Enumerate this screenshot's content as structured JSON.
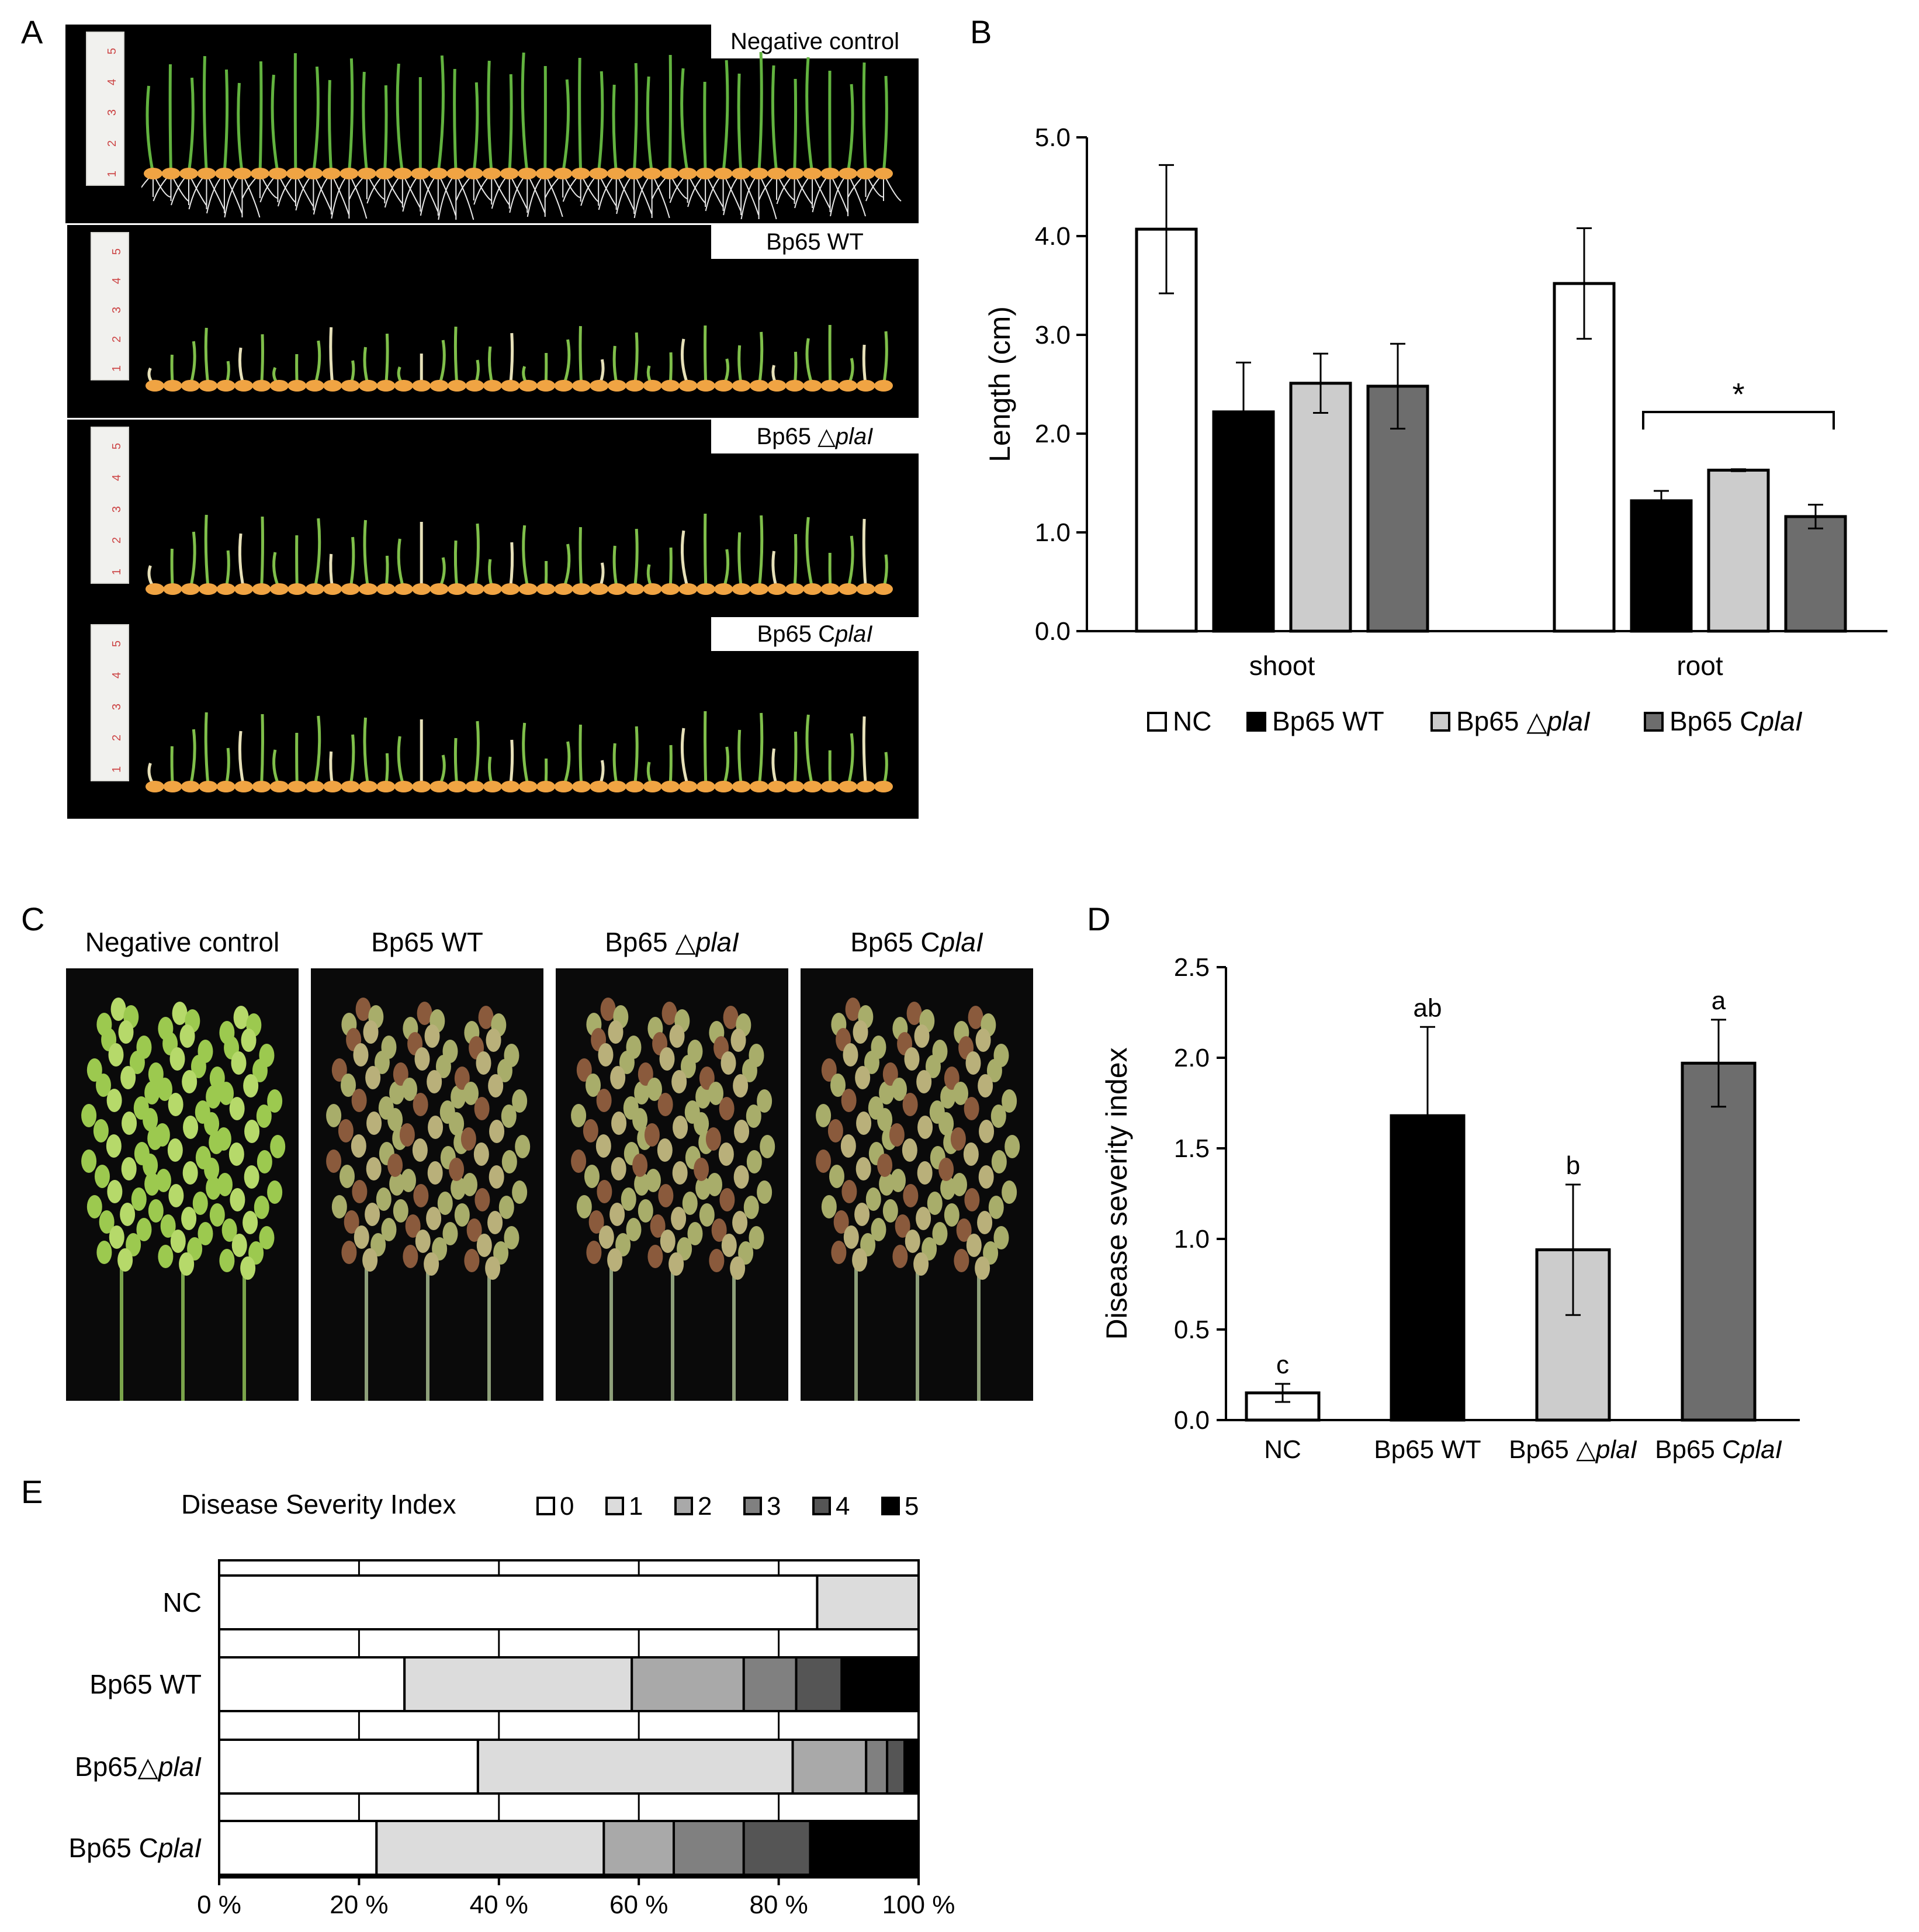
{
  "panels": {
    "A": {
      "letter": "A",
      "rows": [
        {
          "label_plain": "Negative control",
          "label_italic": "",
          "treatment": "NC"
        },
        {
          "label_plain": "Bp65 WT",
          "label_italic": "",
          "treatment": "WT"
        },
        {
          "label_plain": "Bp65 △",
          "label_italic": "plaI",
          "treatment": "delta"
        },
        {
          "label_plain": "Bp65 C",
          "label_italic": "plaI",
          "treatment": "comp"
        }
      ],
      "ruler_numbers": [
        "5",
        "4",
        "3",
        "2",
        "1"
      ]
    },
    "B": {
      "letter": "B"
    },
    "C": {
      "letter": "C",
      "photos": [
        {
          "label_plain": "Negative control",
          "label_italic": "",
          "tone": "green"
        },
        {
          "label_plain": "Bp65 WT",
          "label_italic": "",
          "tone": "diseased"
        },
        {
          "label_plain": "Bp65 △",
          "label_italic": "plaI",
          "tone": "diseased"
        },
        {
          "label_plain": "Bp65 C",
          "label_italic": "plaI",
          "tone": "diseased"
        }
      ]
    },
    "D": {
      "letter": "D"
    },
    "E": {
      "letter": "E"
    }
  },
  "colors": {
    "NC": "#ffffff",
    "WT": "#000000",
    "delta": "#cccccc",
    "comp": "#6d6d6d",
    "dsi_0": "#ffffff",
    "dsi_1": "#dcdcdc",
    "dsi_2": "#a9a9a9",
    "dsi_3": "#808080",
    "dsi_4": "#555555",
    "dsi_5": "#000000"
  },
  "chart_data": [
    {
      "panel": "B",
      "type": "bar",
      "ylabel": "Length (cm)",
      "ylim": [
        0,
        5
      ],
      "yticks": [
        "0.0",
        "1.0",
        "2.0",
        "3.0",
        "4.0",
        "5.0"
      ],
      "categories": [
        "shoot",
        "root"
      ],
      "series": [
        {
          "name": "NC",
          "name_plain": "NC",
          "name_italic": "",
          "values": [
            4.07,
            3.52
          ],
          "errors": [
            0.65,
            0.56
          ]
        },
        {
          "name": "Bp65 WT",
          "name_plain": "Bp65 WT",
          "name_italic": "",
          "values": [
            2.22,
            1.32
          ],
          "errors": [
            0.5,
            0.1
          ]
        },
        {
          "name": "Bp65 △plaI",
          "name_plain": "Bp65 △",
          "name_italic": "plaI",
          "values": [
            2.51,
            1.63
          ],
          "errors": [
            0.3,
            0.01
          ]
        },
        {
          "name": "Bp65 CplaI",
          "name_plain": "Bp65 C",
          "name_italic": "plaI",
          "values": [
            2.48,
            1.16
          ],
          "errors": [
            0.43,
            0.12
          ]
        }
      ],
      "annotation": "*",
      "legend": "bottom"
    },
    {
      "panel": "D",
      "type": "bar",
      "ylabel": "Disease severity index",
      "ylim": [
        0,
        2.5
      ],
      "yticks": [
        "0.0",
        "0.5",
        "1.0",
        "1.5",
        "2.0",
        "2.5"
      ],
      "categories": [
        {
          "plain": "NC",
          "italic": ""
        },
        {
          "plain": "Bp65 WT",
          "italic": ""
        },
        {
          "plain": "Bp65 △",
          "italic": "plaI"
        },
        {
          "plain": "Bp65 C",
          "italic": "plaI"
        }
      ],
      "values": [
        0.15,
        1.68,
        0.94,
        1.97
      ],
      "errors": [
        0.05,
        0.49,
        0.36,
        0.24
      ],
      "letters": [
        "c",
        "ab",
        "b",
        "a"
      ]
    },
    {
      "panel": "E",
      "type": "bar",
      "orientation": "horizontal-stacked-percent",
      "title": "Disease Severity Index",
      "legend_labels": [
        "0",
        "1",
        "2",
        "3",
        "4",
        "5"
      ],
      "xticks": [
        "0 %",
        "20 %",
        "40 %",
        "60 %",
        "80 %",
        "100 %"
      ],
      "categories": [
        {
          "plain": "NC",
          "italic": ""
        },
        {
          "plain": "Bp65 WT",
          "italic": ""
        },
        {
          "plain": "Bp65△",
          "italic": "plaI"
        },
        {
          "plain": "Bp65 C",
          "italic": "plaI"
        }
      ],
      "series": [
        {
          "name": "0",
          "values": [
            85.5,
            26.5,
            37.0,
            22.5
          ]
        },
        {
          "name": "1",
          "values": [
            14.5,
            32.5,
            45.0,
            32.5
          ]
        },
        {
          "name": "2",
          "values": [
            0,
            16.0,
            10.5,
            10.0
          ]
        },
        {
          "name": "3",
          "values": [
            0,
            7.5,
            3.0,
            10.0
          ]
        },
        {
          "name": "4",
          "values": [
            0,
            6.5,
            2.5,
            9.5
          ]
        },
        {
          "name": "5",
          "values": [
            0,
            11.0,
            2.0,
            15.5
          ]
        }
      ]
    }
  ]
}
